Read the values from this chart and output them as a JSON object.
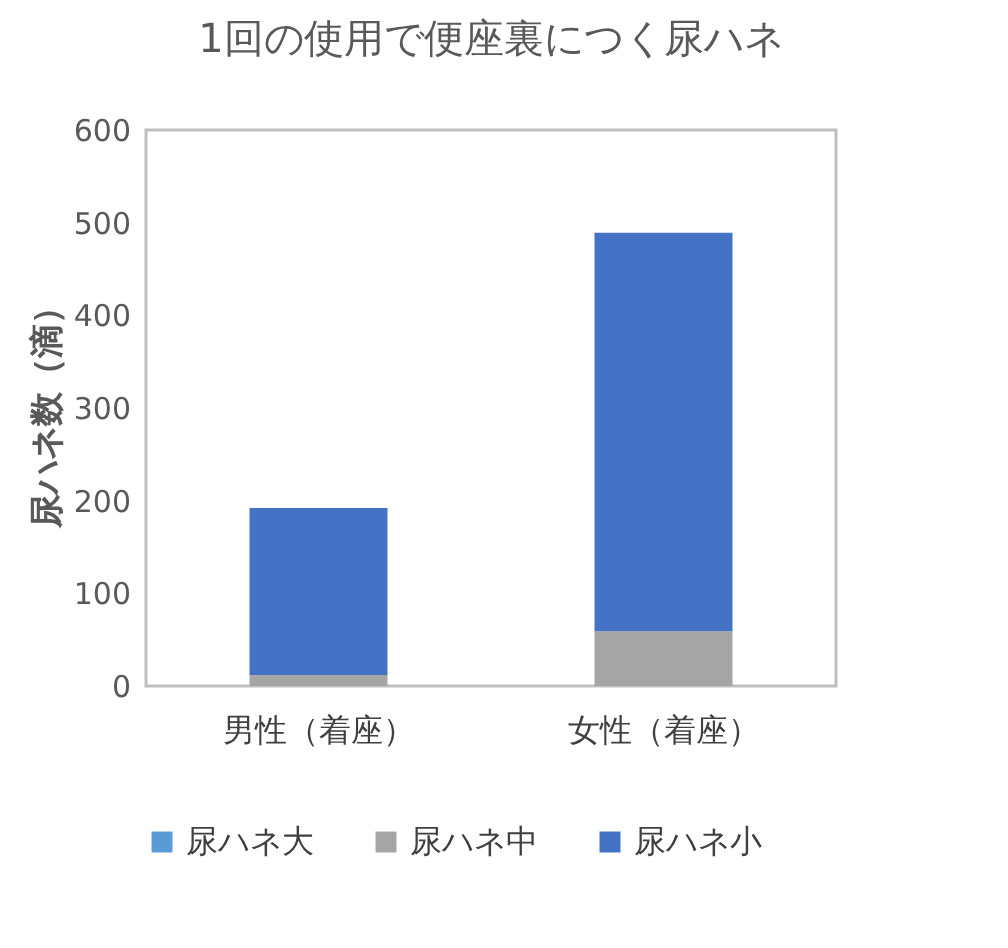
{
  "chart_data": {
    "type": "bar",
    "title": "1回の使用で便座裏につく尿ハネ",
    "ylabel": "尿ハネ数（滴）",
    "categories": [
      "男性（着座）",
      "女性（着座）"
    ],
    "stacked": true,
    "series": [
      {
        "name": "尿ハネ大",
        "color": "#5b9bd5",
        "values": [
          0,
          0
        ]
      },
      {
        "name": "尿ハネ中",
        "color": "#a5a5a5",
        "values": [
          12,
          59
        ]
      },
      {
        "name": "尿ハネ小",
        "color": "#4472c4",
        "values": [
          180,
          430
        ]
      }
    ],
    "ylim": [
      0,
      600
    ],
    "yticks": [
      0,
      100,
      200,
      300,
      400,
      500,
      600
    ],
    "grid": false,
    "legend": "bottom"
  }
}
